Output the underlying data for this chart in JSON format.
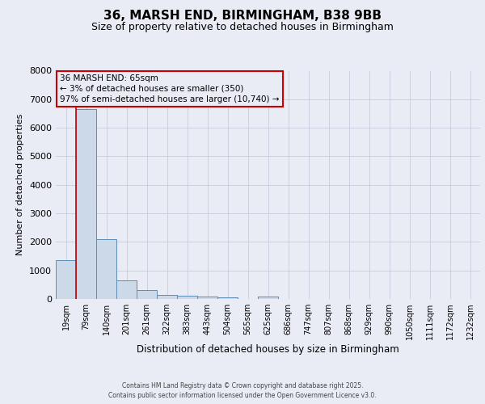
{
  "title": "36, MARSH END, BIRMINGHAM, B38 9BB",
  "subtitle": "Size of property relative to detached houses in Birmingham",
  "xlabel": "Distribution of detached houses by size in Birmingham",
  "ylabel": "Number of detached properties",
  "bin_labels": [
    "19sqm",
    "79sqm",
    "140sqm",
    "201sqm",
    "261sqm",
    "322sqm",
    "383sqm",
    "443sqm",
    "504sqm",
    "565sqm",
    "625sqm",
    "686sqm",
    "747sqm",
    "807sqm",
    "868sqm",
    "929sqm",
    "990sqm",
    "1050sqm",
    "1111sqm",
    "1172sqm",
    "1232sqm"
  ],
  "bin_values": [
    1350,
    6650,
    2100,
    650,
    310,
    140,
    110,
    80,
    65,
    0,
    75,
    0,
    0,
    0,
    0,
    0,
    0,
    0,
    0,
    0,
    0
  ],
  "bar_color": "#ccd9e8",
  "bar_edgecolor": "#5b8db8",
  "background_color": "#eaecf5",
  "property_line_color": "#cc0000",
  "annotation_text": "36 MARSH END: 65sqm\n← 3% of detached houses are smaller (350)\n97% of semi-detached houses are larger (10,740) →",
  "annotation_box_edgecolor": "#cc0000",
  "ylim": [
    0,
    8000
  ],
  "yticks": [
    0,
    1000,
    2000,
    3000,
    4000,
    5000,
    6000,
    7000,
    8000
  ],
  "title_fontsize": 11,
  "subtitle_fontsize": 9,
  "footer_line1": "Contains HM Land Registry data © Crown copyright and database right 2025.",
  "footer_line2": "Contains public sector information licensed under the Open Government Licence v3.0."
}
